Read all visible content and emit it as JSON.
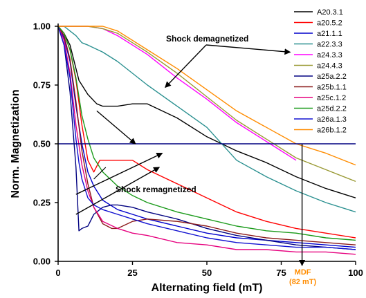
{
  "chart_data": {
    "type": "line",
    "xlabel": "Alternating field (mT)",
    "ylabel": "Norm. Magnetization",
    "xlim": [
      0,
      100
    ],
    "ylim": [
      0,
      1.0
    ],
    "x_ticks": [
      "0",
      "25",
      "50",
      "75",
      "100"
    ],
    "y_ticks": [
      "0.00",
      "0.25",
      "0.50",
      "0.75",
      "1.00"
    ],
    "grid": false,
    "legend_position": "top-right",
    "reference_line_y": 0.5,
    "series": [
      {
        "name": "A20.3.1",
        "color": "#000000",
        "x": [
          0,
          2,
          4,
          7,
          10,
          13,
          15,
          20,
          25,
          30,
          40,
          50,
          60,
          70,
          80,
          90,
          100
        ],
        "y": [
          1.0,
          0.97,
          0.92,
          0.77,
          0.71,
          0.67,
          0.66,
          0.66,
          0.67,
          0.67,
          0.61,
          0.53,
          0.47,
          0.42,
          0.36,
          0.31,
          0.27
        ]
      },
      {
        "name": "a20.5.2",
        "color": "#ff0000",
        "x": [
          0,
          2,
          4,
          6,
          8,
          10,
          12,
          14,
          20,
          25,
          30,
          40,
          50,
          60,
          70,
          80,
          90,
          100
        ],
        "y": [
          1.0,
          0.97,
          0.9,
          0.77,
          0.58,
          0.43,
          0.38,
          0.43,
          0.43,
          0.43,
          0.39,
          0.33,
          0.27,
          0.21,
          0.17,
          0.14,
          0.12,
          0.1
        ]
      },
      {
        "name": "a21.1.1",
        "color": "#0000cc",
        "x": [
          0,
          2,
          4,
          6,
          8,
          10,
          12,
          15,
          20,
          25,
          30,
          40,
          50,
          60,
          70,
          80,
          90,
          100
        ],
        "y": [
          1.0,
          0.95,
          0.85,
          0.66,
          0.5,
          0.38,
          0.32,
          0.26,
          0.22,
          0.2,
          0.18,
          0.15,
          0.12,
          0.1,
          0.09,
          0.08,
          0.07,
          0.06
        ]
      },
      {
        "name": "a22.3.3",
        "color": "#2a9090",
        "x": [
          0,
          2,
          4,
          6,
          8,
          10,
          15,
          20,
          25,
          30,
          40,
          50,
          60,
          70,
          80,
          90,
          100
        ],
        "y": [
          1.0,
          1.0,
          0.98,
          0.96,
          0.93,
          0.92,
          0.89,
          0.85,
          0.8,
          0.75,
          0.66,
          0.57,
          0.43,
          0.36,
          0.3,
          0.25,
          0.21
        ]
      },
      {
        "name": "a24.3.3",
        "color": "#ff00ff",
        "x": [
          0,
          5,
          10,
          15,
          20,
          25,
          30,
          40,
          50,
          60,
          70,
          80
        ],
        "y": [
          1.0,
          1.0,
          1.0,
          0.99,
          0.96,
          0.92,
          0.88,
          0.78,
          0.69,
          0.59,
          0.51,
          0.43
        ]
      },
      {
        "name": "a24.4.3",
        "color": "#999933",
        "x": [
          0,
          5,
          10,
          15,
          20,
          25,
          30,
          40,
          50,
          60,
          70,
          80,
          90,
          100
        ],
        "y": [
          1.0,
          1.0,
          1.0,
          0.99,
          0.97,
          0.93,
          0.89,
          0.8,
          0.7,
          0.6,
          0.52,
          0.44,
          0.39,
          0.34
        ]
      },
      {
        "name": "a25a.2.2",
        "color": "#000080",
        "x": [
          0,
          2,
          4,
          6,
          7,
          8,
          10,
          12,
          15,
          18,
          20,
          25,
          30,
          40,
          50,
          60,
          70,
          80,
          90,
          100
        ],
        "y": [
          1.0,
          0.92,
          0.72,
          0.4,
          0.13,
          0.14,
          0.15,
          0.2,
          0.23,
          0.24,
          0.24,
          0.23,
          0.21,
          0.18,
          0.14,
          0.11,
          0.09,
          0.07,
          0.06,
          0.05
        ]
      },
      {
        "name": "a25b.1.1",
        "color": "#8b1a1a",
        "x": [
          0,
          2,
          4,
          6,
          8,
          10,
          12,
          15,
          18,
          20,
          25,
          30,
          40,
          50,
          60,
          70,
          80,
          90,
          100
        ],
        "y": [
          1.0,
          0.96,
          0.86,
          0.68,
          0.47,
          0.33,
          0.23,
          0.16,
          0.14,
          0.14,
          0.17,
          0.18,
          0.17,
          0.15,
          0.12,
          0.1,
          0.09,
          0.08,
          0.07
        ]
      },
      {
        "name": "a25c.1.2",
        "color": "#e6007e",
        "x": [
          0,
          2,
          4,
          6,
          8,
          10,
          12,
          15,
          20,
          25,
          30,
          40,
          50,
          60,
          70,
          80,
          90,
          100
        ],
        "y": [
          1.0,
          0.94,
          0.8,
          0.58,
          0.41,
          0.3,
          0.23,
          0.17,
          0.14,
          0.12,
          0.11,
          0.08,
          0.07,
          0.05,
          0.05,
          0.04,
          0.04,
          0.03
        ]
      },
      {
        "name": "a25d.2.2",
        "color": "#1a9a1a",
        "x": [
          0,
          2,
          4,
          6,
          8,
          10,
          12,
          15,
          20,
          25,
          30,
          40,
          50,
          60,
          70,
          80,
          90,
          100
        ],
        "y": [
          1.0,
          0.97,
          0.9,
          0.78,
          0.62,
          0.52,
          0.44,
          0.38,
          0.32,
          0.28,
          0.25,
          0.21,
          0.18,
          0.15,
          0.13,
          0.12,
          0.1,
          0.09
        ]
      },
      {
        "name": "a26a.1.3",
        "color": "#1010d0",
        "x": [
          0,
          2,
          4,
          6,
          7,
          8,
          10,
          12,
          15,
          20,
          25,
          30,
          40,
          50,
          60,
          70,
          80,
          90,
          100
        ],
        "y": [
          1.0,
          0.92,
          0.78,
          0.52,
          0.42,
          0.35,
          0.27,
          0.24,
          0.22,
          0.2,
          0.18,
          0.16,
          0.13,
          0.1,
          0.08,
          0.07,
          0.06,
          0.06,
          0.05
        ]
      },
      {
        "name": "a26b.1.2",
        "color": "#ff8c00",
        "x": [
          0,
          5,
          10,
          15,
          20,
          25,
          30,
          40,
          50,
          60,
          70,
          80,
          90,
          100
        ],
        "y": [
          1.0,
          1.0,
          1.0,
          1.0,
          0.98,
          0.94,
          0.9,
          0.82,
          0.73,
          0.64,
          0.57,
          0.5,
          0.46,
          0.41
        ]
      }
    ],
    "annotations": [
      {
        "text": "Shock demagnetized"
      },
      {
        "text": "Shock remagnetized"
      },
      {
        "text": "MDF",
        "color": "#ff8c00"
      },
      {
        "text": "(82 mT)",
        "color": "#ff8c00"
      }
    ],
    "mdf_x": 82
  }
}
